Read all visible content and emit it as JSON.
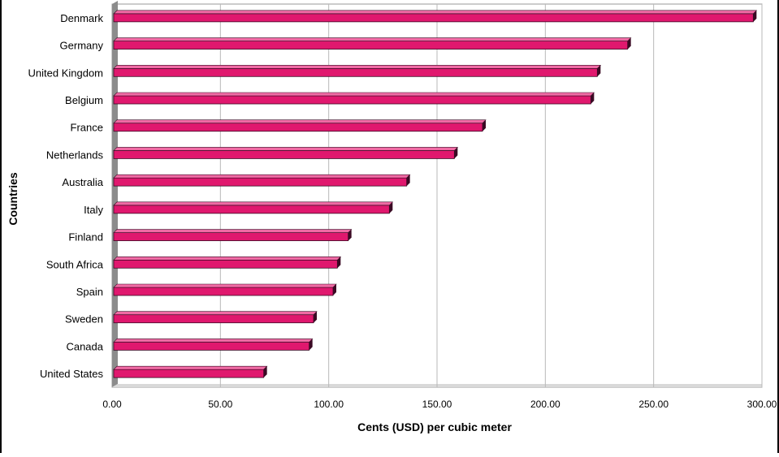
{
  "chart_data": {
    "type": "bar",
    "orientation": "horizontal",
    "title": "",
    "xlabel": "Cents (USD) per cubic meter",
    "ylabel": "Countries",
    "xlim": [
      0,
      300
    ],
    "x_ticks": [
      "0.00",
      "50.00",
      "100.00",
      "150.00",
      "200.00",
      "250.00",
      "300.00"
    ],
    "categories": [
      "Denmark",
      "Germany",
      "United Kingdom",
      "Belgium",
      "France",
      "Netherlands",
      "Australia",
      "Italy",
      "Finland",
      "South Africa",
      "Spain",
      "Sweden",
      "Canada",
      "United States"
    ],
    "values": [
      296,
      238,
      224,
      221,
      171,
      158,
      136,
      128,
      109,
      104,
      102,
      93,
      91,
      70
    ],
    "grid": "vertical",
    "colors": {
      "bar": "#e0186e",
      "bar_top": "#f06aa4",
      "bar_shadow": "#3a0a24",
      "wall": "#8c8c8c",
      "grid": "#b8b8b8"
    }
  }
}
